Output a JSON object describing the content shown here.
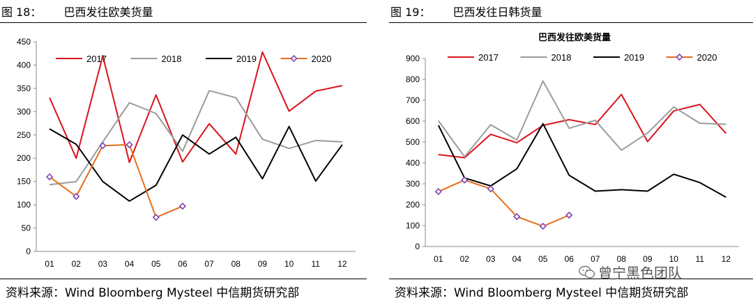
{
  "figures": [
    {
      "number": "图 18：",
      "caption": "巴西发往欧美货量",
      "source": "资料来源：Wind Bloomberg Mysteel 中信期货研究部"
    },
    {
      "number": "图 19：",
      "caption": "巴西发往日韩货量",
      "source": "资料来源：Wind Bloomberg Mysteel 中信期货研究部"
    }
  ],
  "watermark": {
    "text": "曾宁黑色团队",
    "icon": "wechat-icon"
  },
  "colors": {
    "2017": "#d9141b",
    "2018": "#9b9b9b",
    "2019": "#000000",
    "2020": "#e86d19",
    "marker": "#7d45b5"
  },
  "chart_data": [
    {
      "type": "line",
      "title": "",
      "xlabel": "",
      "ylabel": "",
      "categories": [
        "01",
        "02",
        "03",
        "04",
        "05",
        "06",
        "07",
        "08",
        "09",
        "10",
        "11",
        "12"
      ],
      "ylim": [
        0,
        450
      ],
      "yticks": [
        0,
        50,
        100,
        150,
        200,
        250,
        300,
        350,
        400,
        450
      ],
      "legend": "top",
      "grid": false,
      "series": [
        {
          "name": "2017",
          "values": [
            330,
            200,
            420,
            191,
            336,
            192,
            274,
            209,
            428,
            301,
            344,
            356
          ]
        },
        {
          "name": "2018",
          "values": [
            143,
            150,
            235,
            319,
            296,
            215,
            345,
            330,
            241,
            221,
            238,
            235
          ]
        },
        {
          "name": "2019",
          "values": [
            263,
            230,
            150,
            108,
            142,
            250,
            209,
            245,
            156,
            268,
            151,
            229
          ]
        },
        {
          "name": "2020",
          "values": [
            160,
            118,
            227,
            229,
            73,
            97,
            null,
            null,
            null,
            null,
            null,
            null
          ],
          "markers": true
        }
      ]
    },
    {
      "type": "line",
      "title": "巴西发往欧美货量",
      "xlabel": "",
      "ylabel": "",
      "categories": [
        "01",
        "02",
        "03",
        "04",
        "05",
        "06",
        "07",
        "08",
        "09",
        "10",
        "11",
        "12"
      ],
      "ylim": [
        0,
        900
      ],
      "yticks": [
        0,
        100,
        200,
        300,
        400,
        500,
        600,
        700,
        800,
        900
      ],
      "legend": "top",
      "grid": false,
      "series": [
        {
          "name": "2017",
          "values": [
            440,
            425,
            537,
            497,
            580,
            607,
            584,
            728,
            502,
            649,
            680,
            541
          ]
        },
        {
          "name": "2018",
          "values": [
            602,
            430,
            583,
            510,
            792,
            566,
            604,
            461,
            543,
            668,
            590,
            585
          ]
        },
        {
          "name": "2019",
          "values": [
            580,
            328,
            290,
            372,
            588,
            341,
            265,
            272,
            265,
            346,
            306,
            236
          ]
        },
        {
          "name": "2020",
          "values": [
            263,
            318,
            276,
            143,
            97,
            150,
            null,
            null,
            null,
            null,
            null,
            null
          ],
          "markers": true
        }
      ]
    }
  ]
}
